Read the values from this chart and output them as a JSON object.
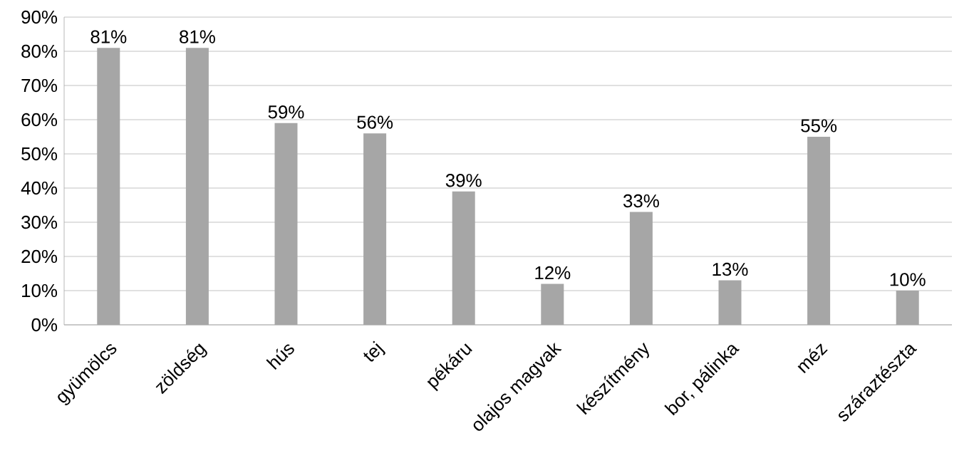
{
  "chart_data": {
    "type": "bar",
    "categories": [
      "gyümölcs",
      "zöldség",
      "hús",
      "tej",
      "pékáru",
      "olajos magvak",
      "készítmény",
      "bor, pálinka",
      "méz",
      "száraztészta"
    ],
    "values": [
      81,
      81,
      59,
      56,
      39,
      12,
      33,
      13,
      55,
      10
    ],
    "value_labels": [
      "81%",
      "81%",
      "59%",
      "56%",
      "39%",
      "12%",
      "33%",
      "13%",
      "55%",
      "10%"
    ],
    "color": "#a6a6a6",
    "ylim": [
      0,
      90
    ],
    "yticks": [
      {
        "value": 0,
        "label": "0%"
      },
      {
        "value": 10,
        "label": "10%"
      },
      {
        "value": 20,
        "label": "20%"
      },
      {
        "value": 30,
        "label": "30%"
      },
      {
        "value": 40,
        "label": "40%"
      },
      {
        "value": 50,
        "label": "50%"
      },
      {
        "value": 60,
        "label": "60%"
      },
      {
        "value": 70,
        "label": "70%"
      },
      {
        "value": 80,
        "label": "80%"
      },
      {
        "value": 90,
        "label": "90%"
      }
    ],
    "grid": "y"
  }
}
